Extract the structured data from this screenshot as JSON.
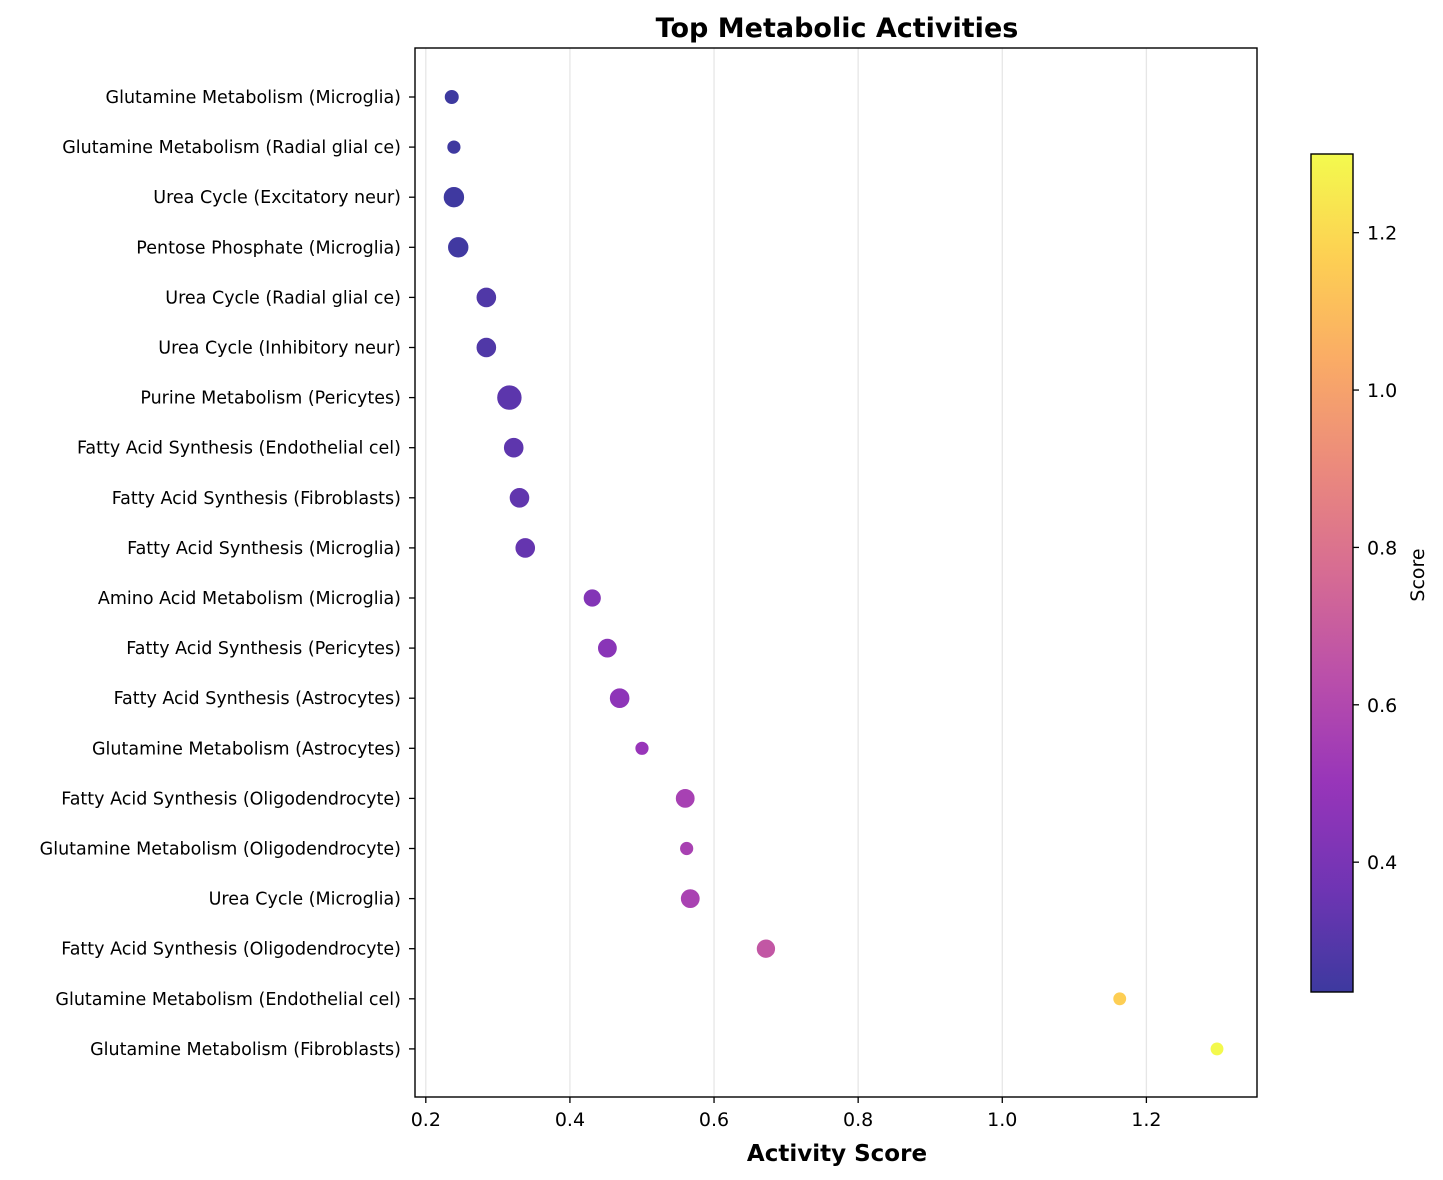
{
  "chart_data": {
    "type": "scatter",
    "title": "Top Metabolic Activities",
    "xlabel": "Activity Score",
    "ylabel": "",
    "xlim": [
      0.185,
      1.3535
    ],
    "xticks": [
      "0.2",
      "0.4",
      "0.6",
      "0.8",
      "1.0",
      "1.2"
    ],
    "xtick_values": [
      0.2,
      0.4,
      0.6,
      0.8,
      1.0,
      1.2
    ],
    "grid": "vertical",
    "colormap": "plasma",
    "colorbar": {
      "label": "Score",
      "range": [
        0.235,
        1.3
      ],
      "ticks": [
        "0.4",
        "0.6",
        "0.8",
        "1.0",
        "1.2"
      ],
      "tick_values": [
        0.4,
        0.6,
        0.8,
        1.0,
        1.2
      ]
    },
    "points": [
      {
        "label": "Glutamine Metabolism (Microglia)",
        "x": 0.236,
        "score": 0.236,
        "size": 0.35
      },
      {
        "label": "Glutamine Metabolism (Radial glial ce)",
        "x": 0.239,
        "score": 0.239,
        "size": 0.3
      },
      {
        "label": "Urea Cycle (Excitatory neur)",
        "x": 0.239,
        "score": 0.239,
        "size": 0.75
      },
      {
        "label": "Pentose Phosphate (Microglia)",
        "x": 0.245,
        "score": 0.245,
        "size": 0.75
      },
      {
        "label": "Urea Cycle (Radial glial ce)",
        "x": 0.284,
        "score": 0.284,
        "size": 0.7
      },
      {
        "label": "Urea Cycle (Inhibitory neur)",
        "x": 0.284,
        "score": 0.284,
        "size": 0.7
      },
      {
        "label": "Purine Metabolism (Pericytes)",
        "x": 0.316,
        "score": 0.316,
        "size": 1.0
      },
      {
        "label": "Fatty Acid Synthesis (Endothelial cel)",
        "x": 0.322,
        "score": 0.322,
        "size": 0.7
      },
      {
        "label": "Fatty Acid Synthesis (Fibroblasts)",
        "x": 0.33,
        "score": 0.33,
        "size": 0.7
      },
      {
        "label": "Fatty Acid Synthesis (Microglia)",
        "x": 0.338,
        "score": 0.338,
        "size": 0.7
      },
      {
        "label": "Amino Acid Metabolism (Microglia)",
        "x": 0.431,
        "score": 0.431,
        "size": 0.55
      },
      {
        "label": "Fatty Acid Synthesis (Pericytes)",
        "x": 0.452,
        "score": 0.452,
        "size": 0.65
      },
      {
        "label": "Fatty Acid Synthesis (Astrocytes)",
        "x": 0.469,
        "score": 0.469,
        "size": 0.7
      },
      {
        "label": "Glutamine Metabolism (Astrocytes)",
        "x": 0.5,
        "score": 0.5,
        "size": 0.3
      },
      {
        "label": "Fatty Acid Synthesis (Oligodendrocyte)",
        "x": 0.56,
        "score": 0.56,
        "size": 0.65
      },
      {
        "label": "Glutamine Metabolism (Oligodendrocyte)",
        "x": 0.562,
        "score": 0.562,
        "size": 0.3
      },
      {
        "label": "Urea Cycle (Microglia)",
        "x": 0.567,
        "score": 0.567,
        "size": 0.65
      },
      {
        "label": "Fatty Acid Synthesis (Oligodendrocyte)",
        "x": 0.672,
        "score": 0.672,
        "size": 0.62
      },
      {
        "label": "Glutamine Metabolism (Endothelial cel)",
        "x": 1.163,
        "score": 1.163,
        "size": 0.28
      },
      {
        "label": "Glutamine Metabolism (Fibroblasts)",
        "x": 1.298,
        "score": 1.298,
        "size": 0.28
      }
    ]
  }
}
